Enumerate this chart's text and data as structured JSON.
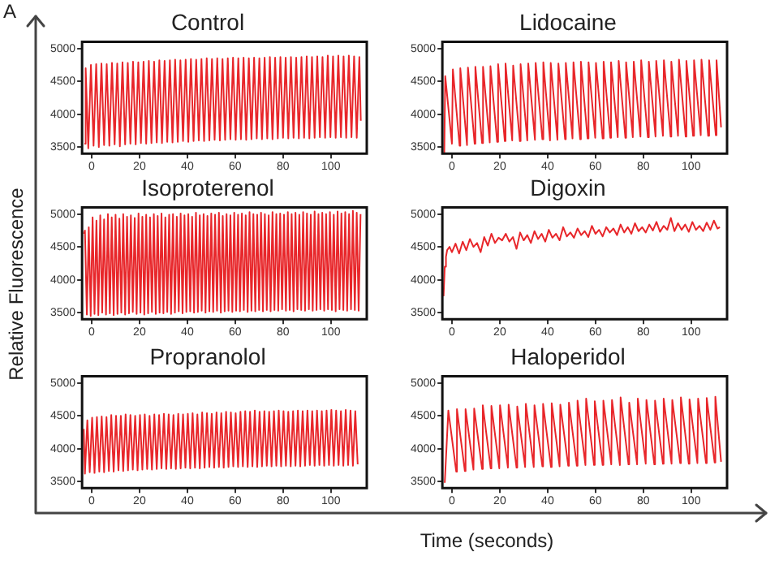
{
  "chart_data": [
    {
      "type": "line",
      "title": "Control",
      "annotations": [
        "A"
      ],
      "xlabel": "Time (seconds)",
      "ylabel": "Relative Fluorescence",
      "xlim": [
        -4,
        115
      ],
      "xticks": [
        0,
        20,
        40,
        60,
        80,
        100
      ],
      "ylim": [
        3400,
        5100
      ],
      "yticks": [
        3500,
        4000,
        4500,
        5000
      ],
      "marker": "none",
      "line_style": "solid",
      "series": [
        {
          "color": "#e8262a",
          "x": [
            -3,
            -2.5,
            -1.4,
            -0.3,
            0.8,
            1.9,
            3.0,
            4.1,
            5.2,
            6.3,
            7.4,
            8.5,
            9.6,
            10.7,
            11.8,
            12.9,
            14.0,
            15.1,
            16.2,
            17.3,
            18.4,
            19.5,
            20.6,
            21.7,
            22.8,
            23.9,
            25.0,
            26.1,
            27.2,
            28.3,
            29.4,
            30.5,
            31.6,
            32.7,
            33.8,
            34.9,
            36.0,
            37.1,
            38.2,
            39.3,
            40.4,
            41.5,
            42.6,
            43.7,
            44.8,
            45.9,
            47.0,
            48.1,
            49.2,
            50.3,
            51.4,
            52.5,
            53.6,
            54.7,
            55.8,
            56.9,
            58.0,
            59.1,
            60.2,
            61.3,
            62.4,
            63.5,
            64.6,
            65.7,
            66.8,
            67.9,
            69.0,
            70.1,
            71.2,
            72.3,
            73.4,
            74.5,
            75.6,
            76.7,
            77.8,
            78.9,
            80.0,
            81.1,
            82.2,
            83.3,
            84.4,
            85.5,
            86.6,
            87.7,
            88.8,
            89.9,
            91.0,
            92.1,
            93.2,
            94.3,
            95.4,
            96.5,
            97.6,
            98.7,
            99.8,
            100.9,
            102.0,
            103.1,
            104.2,
            105.3,
            106.4,
            107.5,
            108.6,
            109.7,
            110.8,
            111.9,
            112.5
          ],
          "values": [
            3550,
            4700,
            3480,
            4750,
            3520,
            4760,
            3500,
            4770,
            3530,
            4760,
            3520,
            4780,
            3540,
            4770,
            3510,
            4790,
            3540,
            4780,
            3550,
            4800,
            3540,
            4790,
            3560,
            4800,
            3550,
            4810,
            3560,
            4800,
            3570,
            4820,
            3560,
            4810,
            3580,
            4820,
            3570,
            4830,
            3580,
            4820,
            3590,
            4830,
            3580,
            4840,
            3590,
            4830,
            3600,
            4840,
            3590,
            4850,
            3600,
            4840,
            3610,
            4850,
            3600,
            4840,
            3610,
            4850,
            3620,
            4860,
            3610,
            4850,
            3620,
            4860,
            3610,
            4850,
            3620,
            4860,
            3630,
            4850,
            3620,
            4860,
            3630,
            4870,
            3620,
            4860,
            3630,
            4870,
            3640,
            4860,
            3630,
            4870,
            3640,
            4860,
            3630,
            4870,
            3640,
            4880,
            3630,
            4870,
            3640,
            4880,
            3650,
            4870,
            3640,
            4890,
            3650,
            4880,
            3640,
            4890,
            3650,
            4880,
            3640,
            4890,
            3650,
            4880,
            3640,
            4870,
            3900
          ]
        }
      ]
    },
    {
      "type": "line",
      "title": "Lidocaine",
      "xlim": [
        -4,
        115
      ],
      "xticks": [
        0,
        20,
        40,
        60,
        80,
        100
      ],
      "ylim": [
        3400,
        5100
      ],
      "yticks": [
        3500,
        4000,
        4500,
        5000
      ],
      "marker": "none",
      "line_style": "solid",
      "series": [
        {
          "color": "#e8262a",
          "x": [
            -3.2,
            -2.8,
            0.0,
            0.4,
            3.2,
            3.5,
            6.3,
            6.7,
            9.5,
            9.8,
            12.6,
            13.0,
            15.8,
            16.1,
            18.9,
            19.3,
            22.1,
            22.4,
            25.2,
            25.6,
            28.4,
            28.7,
            31.5,
            31.9,
            34.7,
            35.0,
            37.8,
            38.2,
            41.0,
            41.3,
            44.1,
            44.5,
            47.3,
            47.6,
            50.4,
            50.8,
            53.6,
            53.9,
            56.7,
            57.1,
            59.9,
            60.2,
            63.0,
            63.4,
            66.2,
            66.5,
            69.3,
            69.7,
            72.5,
            72.8,
            75.6,
            76.0,
            78.8,
            79.1,
            81.9,
            82.3,
            85.1,
            85.4,
            88.2,
            88.6,
            91.4,
            91.7,
            94.5,
            94.9,
            97.7,
            98.0,
            100.8,
            101.2,
            104.0,
            104.3,
            107.1,
            107.5,
            110.3,
            110.6,
            112.5
          ],
          "values": [
            3400,
            4580,
            3550,
            4680,
            3520,
            4700,
            3530,
            4710,
            3550,
            4720,
            3560,
            4720,
            3570,
            4730,
            3580,
            4760,
            3590,
            4770,
            3600,
            4740,
            3590,
            4760,
            3600,
            4770,
            3610,
            4780,
            3620,
            4790,
            3600,
            4780,
            3610,
            4770,
            3620,
            4780,
            3630,
            4790,
            3620,
            4800,
            3630,
            4790,
            3640,
            4780,
            3630,
            4800,
            3640,
            4790,
            3650,
            4810,
            3640,
            4790,
            3650,
            4800,
            3660,
            4820,
            3650,
            4800,
            3660,
            4810,
            3670,
            4820,
            3660,
            4800,
            3670,
            4830,
            3660,
            4810,
            3670,
            4820,
            3680,
            4830,
            3670,
            4820,
            3680,
            4820,
            3800
          ]
        }
      ]
    },
    {
      "type": "line",
      "title": "Isoproterenol",
      "xlim": [
        -4,
        115
      ],
      "xticks": [
        0,
        20,
        40,
        60,
        80,
        100
      ],
      "ylim": [
        3400,
        5100
      ],
      "yticks": [
        3500,
        4000,
        4500,
        5000
      ],
      "marker": "none",
      "line_style": "solid",
      "series": [
        {
          "color": "#e8262a",
          "x": [
            -3.2,
            -2.8,
            -2.0,
            -1.2,
            -0.4,
            0.4,
            1.2,
            2.0,
            2.8,
            3.6,
            4.4,
            5.2,
            6.0,
            6.8,
            7.6,
            8.4,
            9.2,
            10.0,
            10.8,
            11.6,
            12.4,
            13.2,
            14.0,
            14.8,
            15.6,
            16.4,
            17.2,
            18.0,
            18.8,
            19.6,
            20.4,
            21.2,
            22.0,
            22.8,
            23.6,
            24.4,
            25.2,
            26.0,
            26.8,
            27.6,
            28.4,
            29.2,
            30.0,
            30.8,
            31.6,
            32.4,
            33.2,
            34.0,
            34.8,
            35.6,
            36.4,
            37.2,
            38.0,
            38.8,
            39.6,
            40.4,
            41.2,
            42.0,
            42.8,
            43.6,
            44.4,
            45.2,
            46.0,
            46.8,
            47.6,
            48.4,
            49.2,
            50.0,
            50.8,
            51.6,
            52.4,
            53.2,
            54.0,
            54.8,
            55.6,
            56.4,
            57.2,
            58.0,
            58.8,
            59.6,
            60.4,
            61.2,
            62.0,
            62.8,
            63.6,
            64.4,
            65.2,
            66.0,
            66.8,
            67.6,
            68.4,
            69.2,
            70.0,
            70.8,
            71.6,
            72.4,
            73.2,
            74.0,
            74.8,
            75.6,
            76.4,
            77.2,
            78.0,
            78.8,
            79.6,
            80.4,
            81.2,
            82.0,
            82.8,
            83.6,
            84.4,
            85.2,
            86.0,
            86.8,
            87.6,
            88.4,
            89.2,
            90.0,
            90.8,
            91.6,
            92.4,
            93.2,
            94.0,
            94.8,
            95.6,
            96.4,
            97.2,
            98.0,
            98.8,
            99.6,
            100.4,
            101.2,
            102.0,
            102.8,
            103.6,
            104.4,
            105.2,
            106.0,
            106.8,
            107.6,
            108.4,
            109.2,
            110.0,
            110.8,
            111.6,
            112.4
          ],
          "values": [
            4700,
            4750,
            3470,
            4800,
            3450,
            4950,
            3480,
            4900,
            3460,
            4980,
            3500,
            4920,
            3470,
            5000,
            3490,
            4950,
            3460,
            4990,
            3480,
            4930,
            3500,
            5000,
            3470,
            4960,
            3490,
            4980,
            3510,
            4940,
            3480,
            5010,
            3500,
            4960,
            3470,
            4990,
            3490,
            4950,
            3510,
            5000,
            3480,
            4970,
            3500,
            5010,
            3490,
            4950,
            3510,
            4990,
            3480,
            5000,
            3500,
            4960,
            3520,
            5010,
            3490,
            4980,
            3510,
            5000,
            3520,
            4960,
            3500,
            5020,
            3510,
            4980,
            3530,
            5000,
            3500,
            4970,
            3520,
            5010,
            3510,
            4990,
            3530,
            5020,
            3500,
            4970,
            3520,
            5000,
            3530,
            4980,
            3510,
            5020,
            3530,
            4990,
            3520,
            5010,
            3540,
            4980,
            3510,
            5030,
            3530,
            5000,
            3520,
            4990,
            3540,
            5020,
            3520,
            5000,
            3540,
            4980,
            3520,
            5030,
            3540,
            5000,
            3530,
            5010,
            3550,
            4990,
            3530,
            5030,
            3540,
            5000,
            3520,
            5020,
            3550,
            4990,
            3540,
            5030,
            3530,
            5010,
            3550,
            4990,
            3530,
            5040,
            3540,
            5000,
            3550,
            5020,
            3530,
            5000,
            3550,
            5030,
            3540,
            4990,
            3520,
            5040,
            3550,
            5010,
            3540,
            5030,
            3530,
            5000,
            3550,
            5050,
            3540,
            5020,
            3530,
            5000
          ]
        }
      ]
    },
    {
      "type": "line",
      "title": "Digoxin",
      "xlim": [
        -4,
        115
      ],
      "xticks": [
        0,
        20,
        40,
        60,
        80,
        100
      ],
      "ylim": [
        3400,
        5100
      ],
      "yticks": [
        3500,
        4000,
        4500,
        5000
      ],
      "marker": "none",
      "line_style": "solid",
      "series": [
        {
          "color": "#e8262a",
          "x": [
            -3.5,
            -3.0,
            -2.5,
            -2.0,
            -1.0,
            0.0,
            1.5,
            3.0,
            4.5,
            6.0,
            7.5,
            9.0,
            10.5,
            12.0,
            13.5,
            15.0,
            16.5,
            18.0,
            19.5,
            21.0,
            22.5,
            24.0,
            25.5,
            27.0,
            28.5,
            30.0,
            31.5,
            33.0,
            34.5,
            36.0,
            37.5,
            39.0,
            40.5,
            42.0,
            43.5,
            45.0,
            46.5,
            48.0,
            49.5,
            51.0,
            52.5,
            54.0,
            55.5,
            57.0,
            58.5,
            60.0,
            61.5,
            63.0,
            64.5,
            66.0,
            67.5,
            69.0,
            70.5,
            72.0,
            73.5,
            75.0,
            76.5,
            78.0,
            79.5,
            81.0,
            82.5,
            84.0,
            85.5,
            87.0,
            88.5,
            90.0,
            91.5,
            93.0,
            94.5,
            96.0,
            97.5,
            99.0,
            100.5,
            102.0,
            103.5,
            105.0,
            106.5,
            108.0,
            109.5,
            111.0,
            112.0
          ],
          "values": [
            3750,
            4200,
            4350,
            4450,
            4500,
            4420,
            4550,
            4400,
            4580,
            4450,
            4620,
            4500,
            4560,
            4420,
            4650,
            4520,
            4700,
            4560,
            4640,
            4600,
            4700,
            4580,
            4650,
            4470,
            4720,
            4600,
            4680,
            4560,
            4740,
            4620,
            4700,
            4580,
            4760,
            4640,
            4700,
            4600,
            4800,
            4660,
            4720,
            4640,
            4780,
            4680,
            4740,
            4650,
            4820,
            4700,
            4760,
            4660,
            4800,
            4720,
            4780,
            4680,
            4840,
            4720,
            4800,
            4700,
            4860,
            4740,
            4800,
            4720,
            4840,
            4750,
            4880,
            4730,
            4820,
            4760,
            4940,
            4740,
            4860,
            4760,
            4840,
            4730,
            4880,
            4760,
            4820,
            4740,
            4870,
            4760,
            4900,
            4780,
            4800
          ]
        }
      ]
    },
    {
      "type": "line",
      "title": "Propranolol",
      "xlim": [
        -4,
        115
      ],
      "xticks": [
        0,
        20,
        40,
        60,
        80,
        100
      ],
      "ylim": [
        3400,
        5100
      ],
      "yticks": [
        3500,
        4000,
        4500,
        5000
      ],
      "marker": "none",
      "line_style": "solid",
      "series": [
        {
          "color": "#e8262a",
          "x": [
            -3.3,
            -2.8,
            -1.8,
            -0.8,
            0.2,
            1.2,
            2.2,
            3.2,
            4.2,
            5.2,
            6.2,
            7.2,
            8.2,
            9.2,
            10.2,
            11.2,
            12.2,
            13.2,
            14.2,
            15.2,
            16.2,
            17.2,
            18.2,
            19.2,
            20.2,
            21.2,
            22.2,
            23.2,
            24.2,
            25.2,
            26.2,
            27.2,
            28.2,
            29.2,
            30.2,
            31.2,
            32.2,
            33.2,
            34.2,
            35.2,
            36.2,
            37.2,
            38.2,
            39.2,
            40.2,
            41.2,
            42.2,
            43.2,
            44.2,
            45.2,
            46.2,
            47.2,
            48.2,
            49.2,
            50.2,
            51.2,
            52.2,
            53.2,
            54.2,
            55.2,
            56.2,
            57.2,
            58.2,
            59.2,
            60.2,
            61.2,
            62.2,
            63.2,
            64.2,
            65.2,
            66.2,
            67.2,
            68.2,
            69.2,
            70.2,
            71.2,
            72.2,
            73.2,
            74.2,
            75.2,
            76.2,
            77.2,
            78.2,
            79.2,
            80.2,
            81.2,
            82.2,
            83.2,
            84.2,
            85.2,
            86.2,
            87.2,
            88.2,
            89.2,
            90.2,
            91.2,
            92.2,
            93.2,
            94.2,
            95.2,
            96.2,
            97.2,
            98.2,
            99.2,
            100.2,
            101.2,
            102.2,
            103.2,
            104.2,
            105.2,
            106.2,
            107.2,
            108.2,
            109.2,
            110.2,
            111.2
          ],
          "values": [
            4300,
            3620,
            4430,
            3640,
            4470,
            3630,
            4480,
            3650,
            4490,
            3640,
            4480,
            3660,
            4510,
            3650,
            4500,
            3670,
            4500,
            3660,
            4520,
            3670,
            4510,
            3680,
            4500,
            3670,
            4510,
            3680,
            4520,
            3690,
            4500,
            3680,
            4520,
            3690,
            4510,
            3700,
            4530,
            3690,
            4520,
            3700,
            4510,
            3690,
            4530,
            3700,
            4520,
            3710,
            4530,
            3700,
            4540,
            3710,
            4520,
            3700,
            4550,
            3710,
            4540,
            3720,
            4530,
            3710,
            4550,
            3720,
            4540,
            3710,
            4560,
            3720,
            4550,
            3730,
            4540,
            3720,
            4560,
            3730,
            4570,
            3720,
            4560,
            3730,
            4580,
            3720,
            4560,
            3730,
            4570,
            3740,
            4560,
            3730,
            4570,
            3740,
            4580,
            3730,
            4570,
            3740,
            4560,
            3730,
            4570,
            3740,
            4580,
            3730,
            4570,
            3740,
            4580,
            3750,
            4570,
            3740,
            4580,
            3750,
            4570,
            3740,
            4580,
            3750,
            4590,
            3740,
            4580,
            3750,
            4570,
            3740,
            4590,
            3750,
            4580,
            3740,
            4570,
            3760
          ]
        }
      ]
    },
    {
      "type": "line",
      "title": "Haloperidol",
      "xlim": [
        -4,
        115
      ],
      "xticks": [
        0,
        20,
        40,
        60,
        80,
        100
      ],
      "ylim": [
        3400,
        5100
      ],
      "yticks": [
        3500,
        4000,
        4500,
        5000
      ],
      "marker": "none",
      "line_style": "solid",
      "series": [
        {
          "color": "#e8262a",
          "x": [
            -3.0,
            -1.5,
            1.8,
            2.1,
            5.4,
            5.7,
            9.0,
            9.3,
            12.6,
            12.9,
            16.2,
            16.5,
            19.8,
            20.1,
            23.4,
            23.7,
            27.0,
            27.3,
            30.6,
            30.9,
            34.2,
            34.5,
            37.8,
            38.1,
            41.4,
            41.7,
            45.0,
            45.3,
            48.6,
            48.9,
            52.2,
            52.5,
            55.8,
            56.1,
            59.4,
            59.7,
            63.0,
            63.3,
            66.6,
            66.9,
            70.2,
            70.5,
            73.8,
            74.1,
            77.4,
            77.7,
            81.0,
            81.3,
            84.6,
            84.9,
            88.2,
            88.5,
            91.8,
            92.1,
            95.4,
            95.7,
            99.0,
            99.3,
            102.6,
            102.9,
            106.2,
            106.5,
            109.8,
            110.1,
            112.5
          ],
          "values": [
            3480,
            4580,
            3650,
            4600,
            3660,
            4600,
            3680,
            4610,
            3690,
            4660,
            3700,
            4650,
            3700,
            4660,
            3710,
            4670,
            3710,
            4640,
            3720,
            4680,
            3720,
            4660,
            3730,
            4680,
            3720,
            4690,
            3730,
            4670,
            3740,
            4700,
            3740,
            4730,
            3750,
            4760,
            3750,
            4720,
            3750,
            4730,
            3760,
            4740,
            3750,
            4780,
            3760,
            4700,
            3760,
            4760,
            3770,
            4740,
            3760,
            4730,
            3770,
            4760,
            3770,
            4740,
            3780,
            4780,
            3770,
            4750,
            3780,
            4760,
            3780,
            4770,
            3790,
            4790,
            3800
          ]
        }
      ]
    }
  ]
}
